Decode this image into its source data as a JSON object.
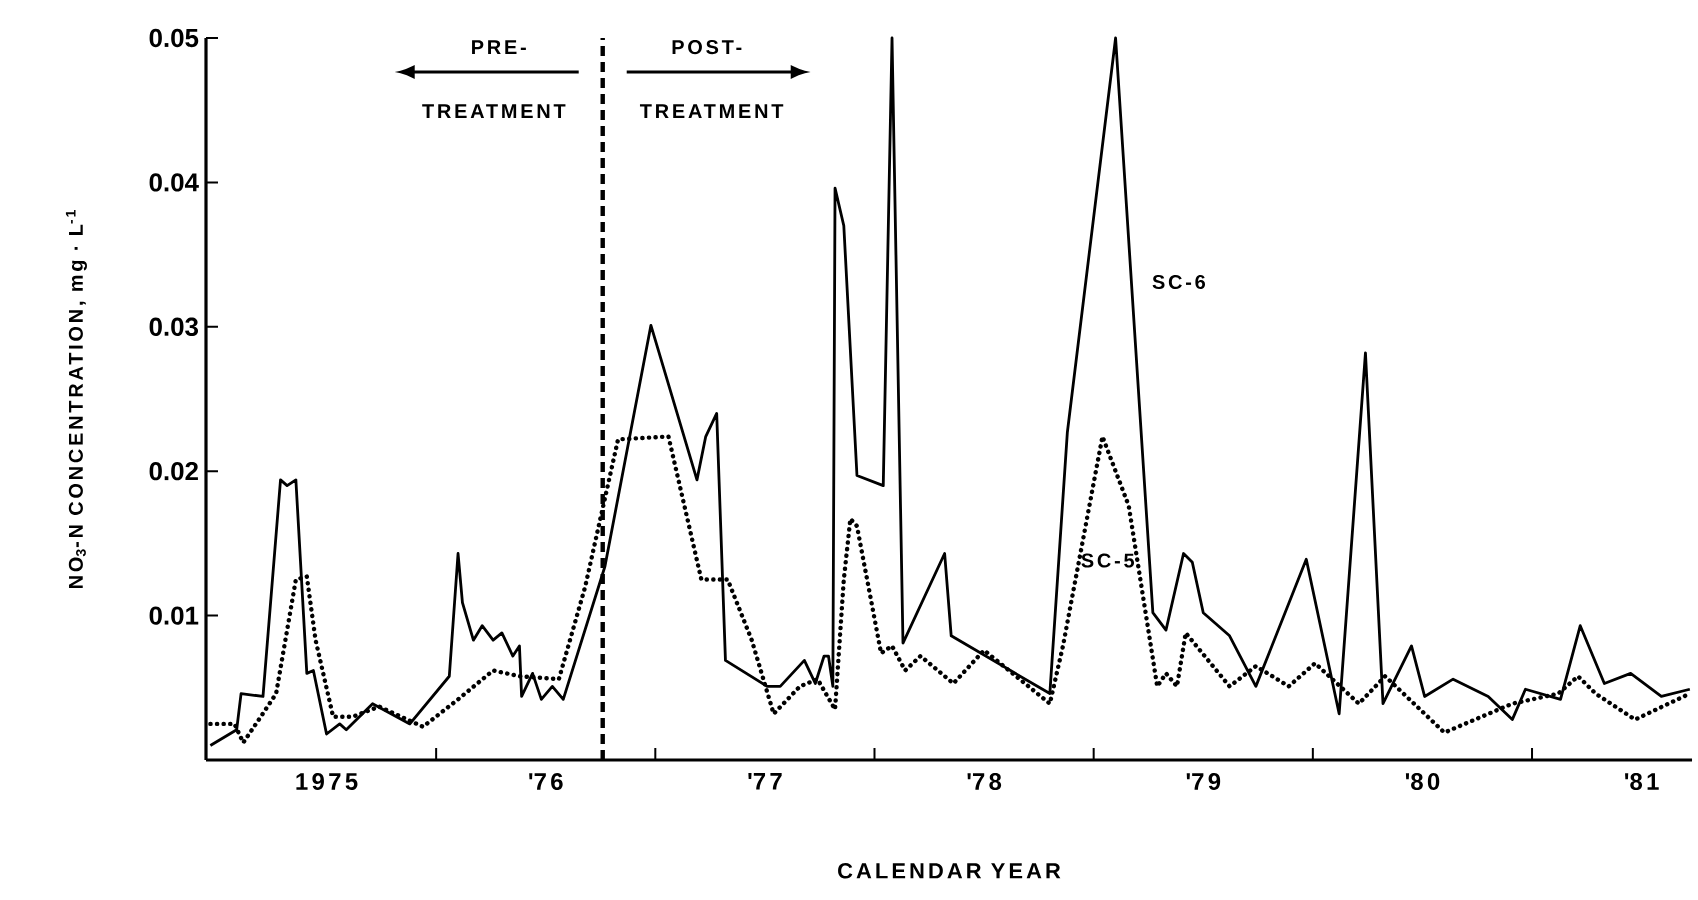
{
  "chart_data": {
    "type": "line",
    "xlabel": "CALENDAR YEAR",
    "ylabel": "NO$_{3}$-N CONCENTRATION, mg · L$^{-1}$",
    "xlim": [
      1974.45,
      1981.23
    ],
    "ylim": [
      0,
      0.05
    ],
    "xticks": [
      {
        "value": 1975,
        "label": "1975"
      },
      {
        "value": 1975.5,
        "label": null
      },
      {
        "value": 1976,
        "label": "'76"
      },
      {
        "value": 1976.5,
        "label": null
      },
      {
        "value": 1977,
        "label": "'77"
      },
      {
        "value": 1977.5,
        "label": null
      },
      {
        "value": 1978,
        "label": "'78"
      },
      {
        "value": 1978.5,
        "label": null
      },
      {
        "value": 1979,
        "label": "'79"
      },
      {
        "value": 1979.5,
        "label": null
      },
      {
        "value": 1980,
        "label": "'80"
      },
      {
        "value": 1980.5,
        "label": null
      },
      {
        "value": 1981,
        "label": "'81"
      }
    ],
    "yticks": [
      0.01,
      0.02,
      0.03,
      0.04,
      0.05
    ],
    "grid": false,
    "legend": false,
    "marker": "none",
    "series": [
      {
        "name": "SC-6",
        "color": "#000000",
        "line_style": "solid",
        "x": [
          1974.47,
          1974.59,
          1974.61,
          1974.71,
          1974.79,
          1974.82,
          1974.86,
          1974.91,
          1974.94,
          1975.0,
          1975.06,
          1975.09,
          1975.21,
          1975.38,
          1975.56,
          1975.6,
          1975.62,
          1975.67,
          1975.71,
          1975.76,
          1975.8,
          1975.85,
          1975.88,
          1975.89,
          1975.94,
          1975.98,
          1976.03,
          1976.08,
          1976.27,
          1976.48,
          1976.69,
          1976.73,
          1976.78,
          1976.82,
          1977.01,
          1977.07,
          1977.18,
          1977.23,
          1977.27,
          1977.29,
          1977.31,
          1977.32,
          1977.36,
          1977.42,
          1977.54,
          1977.58,
          1977.63,
          1977.82,
          1977.85,
          1978.3,
          1978.38,
          1978.6,
          1978.77,
          1978.83,
          1978.91,
          1978.95,
          1979.0,
          1979.12,
          1979.24,
          1979.47,
          1979.62,
          1979.74,
          1979.82,
          1979.95,
          1980.01,
          1980.14,
          1980.3,
          1980.41,
          1980.47,
          1980.63,
          1980.72,
          1980.83,
          1980.95,
          1981.09,
          1981.22
        ],
        "values": [
          0.001,
          0.0021,
          0.0046,
          0.0044,
          0.0194,
          0.019,
          0.0194,
          0.006,
          0.0062,
          0.0018,
          0.0025,
          0.0021,
          0.0039,
          0.0025,
          0.0058,
          0.0143,
          0.0109,
          0.0083,
          0.0093,
          0.0083,
          0.0088,
          0.0072,
          0.0079,
          0.0044,
          0.006,
          0.0042,
          0.0051,
          0.0042,
          0.0134,
          0.0301,
          0.0194,
          0.0224,
          0.024,
          0.0069,
          0.0051,
          0.0051,
          0.0069,
          0.0053,
          0.0072,
          0.0072,
          0.0051,
          0.0396,
          0.037,
          0.0197,
          0.019,
          0.05,
          0.0081,
          0.0143,
          0.0086,
          0.0046,
          0.0227,
          0.05,
          0.0102,
          0.009,
          0.0143,
          0.0137,
          0.0102,
          0.0086,
          0.0051,
          0.0139,
          0.0032,
          0.0282,
          0.0039,
          0.0079,
          0.0044,
          0.0056,
          0.0044,
          0.0028,
          0.0049,
          0.0042,
          0.0093,
          0.0053,
          0.006,
          0.0044,
          0.0049
        ]
      },
      {
        "name": "SC-5",
        "color": "#000000",
        "line_style": "dotted",
        "x": [
          1974.47,
          1974.58,
          1974.62,
          1974.7,
          1974.77,
          1974.86,
          1974.91,
          1974.95,
          1975.03,
          1975.12,
          1975.24,
          1975.44,
          1975.6,
          1975.76,
          1975.88,
          1976.06,
          1976.18,
          1976.33,
          1976.56,
          1976.71,
          1976.83,
          1976.94,
          1977.04,
          1977.16,
          1977.24,
          1977.32,
          1977.36,
          1977.39,
          1977.42,
          1977.53,
          1977.58,
          1977.64,
          1977.71,
          1977.86,
          1978.0,
          1978.3,
          1978.36,
          1978.54,
          1978.66,
          1978.79,
          1978.83,
          1978.88,
          1978.92,
          1979.12,
          1979.24,
          1979.39,
          1979.51,
          1979.71,
          1979.83,
          1980.1,
          1980.41,
          1980.62,
          1980.71,
          1980.79,
          1980.97,
          1981.22
        ],
        "values": [
          0.0025,
          0.0025,
          0.0012,
          0.003,
          0.0046,
          0.0125,
          0.0127,
          0.0083,
          0.003,
          0.003,
          0.0037,
          0.0023,
          0.0042,
          0.0062,
          0.0058,
          0.0056,
          0.012,
          0.0222,
          0.0224,
          0.0125,
          0.0125,
          0.0083,
          0.0032,
          0.0051,
          0.0056,
          0.0035,
          0.0125,
          0.0167,
          0.0162,
          0.0074,
          0.0079,
          0.0062,
          0.0072,
          0.0053,
          0.0076,
          0.0039,
          0.0079,
          0.0224,
          0.0176,
          0.0051,
          0.006,
          0.0051,
          0.0088,
          0.0051,
          0.0065,
          0.0051,
          0.0067,
          0.0039,
          0.0058,
          0.0019,
          0.0039,
          0.0046,
          0.0058,
          0.0046,
          0.0028,
          0.0046
        ]
      }
    ],
    "ref_lines": [
      {
        "axis": "x",
        "value": 1976.26,
        "color": "#000000",
        "line_style": "dashed"
      }
    ],
    "annotations": [
      "PRE-",
      "TREATMENT",
      "POST-",
      "TREATMENT"
    ]
  }
}
